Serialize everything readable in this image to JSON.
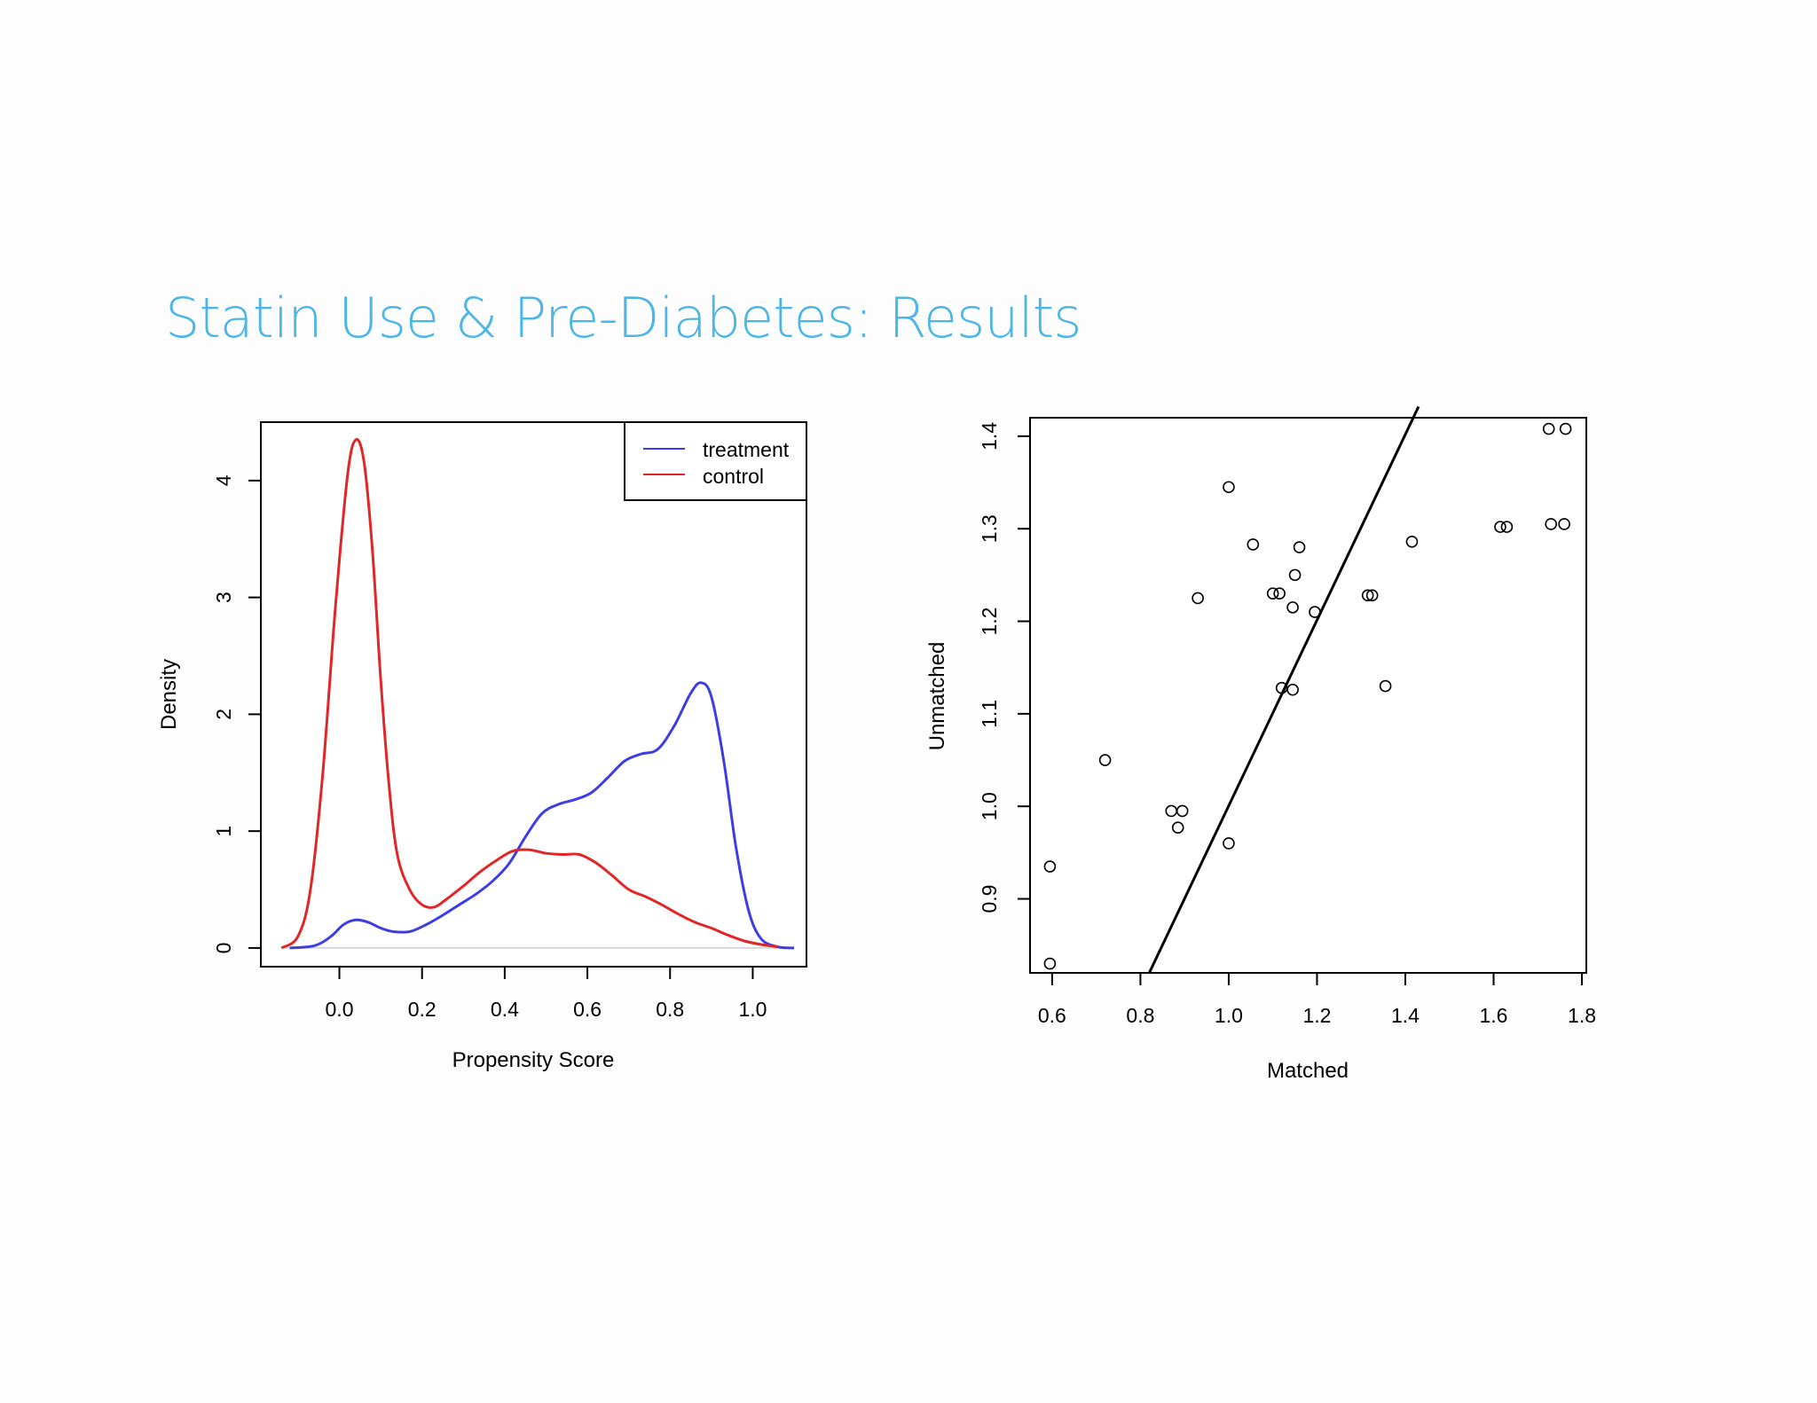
{
  "slide": {
    "title": "Statin Use & Pre-Diabetes: Results"
  },
  "chart_data": [
    {
      "type": "line",
      "xlabel": "Propensity Score",
      "ylabel": "Density",
      "xlim": [
        -0.19,
        1.13
      ],
      "ylim": [
        -0.16,
        4.5
      ],
      "x_ticks": [
        "0.0",
        "0.2",
        "0.4",
        "0.6",
        "0.8",
        "1.0"
      ],
      "y_ticks": [
        "0",
        "1",
        "2",
        "3",
        "4"
      ],
      "legend_position": "top-right",
      "baseline": 0,
      "series": [
        {
          "name": "treatment",
          "color": "#3d3de6",
          "points": [
            [
              -0.12,
              0.0
            ],
            [
              -0.06,
              0.02
            ],
            [
              -0.02,
              0.1
            ],
            [
              0.01,
              0.2
            ],
            [
              0.04,
              0.24
            ],
            [
              0.07,
              0.22
            ],
            [
              0.1,
              0.17
            ],
            [
              0.13,
              0.14
            ],
            [
              0.17,
              0.14
            ],
            [
              0.21,
              0.2
            ],
            [
              0.25,
              0.28
            ],
            [
              0.29,
              0.37
            ],
            [
              0.33,
              0.46
            ],
            [
              0.37,
              0.57
            ],
            [
              0.41,
              0.72
            ],
            [
              0.45,
              0.95
            ],
            [
              0.49,
              1.15
            ],
            [
              0.53,
              1.23
            ],
            [
              0.57,
              1.27
            ],
            [
              0.61,
              1.33
            ],
            [
              0.65,
              1.46
            ],
            [
              0.69,
              1.6
            ],
            [
              0.73,
              1.66
            ],
            [
              0.77,
              1.7
            ],
            [
              0.81,
              1.9
            ],
            [
              0.85,
              2.18
            ],
            [
              0.875,
              2.27
            ],
            [
              0.9,
              2.15
            ],
            [
              0.93,
              1.6
            ],
            [
              0.96,
              0.85
            ],
            [
              0.99,
              0.32
            ],
            [
              1.02,
              0.08
            ],
            [
              1.06,
              0.01
            ],
            [
              1.1,
              0.0
            ]
          ]
        },
        {
          "name": "control",
          "color": "#e02626",
          "points": [
            [
              -0.14,
              0.0
            ],
            [
              -0.1,
              0.1
            ],
            [
              -0.07,
              0.5
            ],
            [
              -0.04,
              1.5
            ],
            [
              -0.01,
              2.9
            ],
            [
              0.02,
              4.05
            ],
            [
              0.04,
              4.35
            ],
            [
              0.06,
              4.15
            ],
            [
              0.08,
              3.4
            ],
            [
              0.1,
              2.3
            ],
            [
              0.12,
              1.4
            ],
            [
              0.14,
              0.8
            ],
            [
              0.17,
              0.5
            ],
            [
              0.2,
              0.37
            ],
            [
              0.23,
              0.35
            ],
            [
              0.26,
              0.42
            ],
            [
              0.3,
              0.53
            ],
            [
              0.34,
              0.65
            ],
            [
              0.38,
              0.75
            ],
            [
              0.42,
              0.83
            ],
            [
              0.46,
              0.84
            ],
            [
              0.5,
              0.81
            ],
            [
              0.54,
              0.8
            ],
            [
              0.58,
              0.8
            ],
            [
              0.62,
              0.73
            ],
            [
              0.66,
              0.62
            ],
            [
              0.7,
              0.5
            ],
            [
              0.74,
              0.44
            ],
            [
              0.78,
              0.37
            ],
            [
              0.82,
              0.29
            ],
            [
              0.86,
              0.22
            ],
            [
              0.9,
              0.17
            ],
            [
              0.94,
              0.11
            ],
            [
              0.98,
              0.06
            ],
            [
              1.02,
              0.03
            ],
            [
              1.06,
              0.01
            ]
          ]
        }
      ]
    },
    {
      "type": "scatter",
      "xlabel": "Matched",
      "ylabel": "Unmatched",
      "xlim": [
        0.55,
        1.81
      ],
      "ylim": [
        0.82,
        1.42
      ],
      "x_ticks": [
        "0.6",
        "0.8",
        "1.0",
        "1.2",
        "1.4",
        "1.6",
        "1.8"
      ],
      "y_ticks": [
        "0.9",
        "1.0",
        "1.1",
        "1.2",
        "1.3",
        "1.4"
      ],
      "reference_line": [
        [
          0.82,
          0.82
        ],
        [
          1.43,
          1.432
        ]
      ],
      "points": [
        [
          0.595,
          0.935
        ],
        [
          0.595,
          0.83
        ],
        [
          0.72,
          1.05
        ],
        [
          0.87,
          0.995
        ],
        [
          0.895,
          0.995
        ],
        [
          0.885,
          0.977
        ],
        [
          0.93,
          1.225
        ],
        [
          1.0,
          1.345
        ],
        [
          1.0,
          0.96
        ],
        [
          1.055,
          1.283
        ],
        [
          1.1,
          1.23
        ],
        [
          1.115,
          1.23
        ],
        [
          1.145,
          1.215
        ],
        [
          1.15,
          1.25
        ],
        [
          1.16,
          1.28
        ],
        [
          1.195,
          1.21
        ],
        [
          1.12,
          1.128
        ],
        [
          1.145,
          1.126
        ],
        [
          1.315,
          1.228
        ],
        [
          1.325,
          1.228
        ],
        [
          1.355,
          1.13
        ],
        [
          1.415,
          1.286
        ],
        [
          1.615,
          1.302
        ],
        [
          1.63,
          1.302
        ],
        [
          1.73,
          1.305
        ],
        [
          1.76,
          1.305
        ],
        [
          1.725,
          1.408
        ],
        [
          1.763,
          1.408
        ]
      ]
    }
  ]
}
